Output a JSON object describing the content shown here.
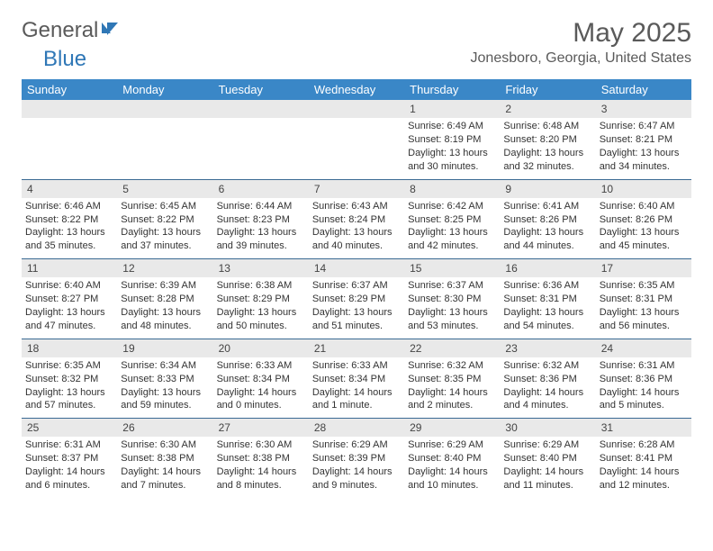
{
  "logo": {
    "part1": "General",
    "part2": "Blue"
  },
  "title": {
    "month": "May 2025",
    "location": "Jonesboro, Georgia, United States"
  },
  "weekday_labels": [
    "Sunday",
    "Monday",
    "Tuesday",
    "Wednesday",
    "Thursday",
    "Friday",
    "Saturday"
  ],
  "colors": {
    "header_bg": "#3a87c7",
    "header_text": "#ffffff",
    "daynum_bg": "#e9e9e9",
    "week_divider": "#3a6a93",
    "logo_gray": "#5a5a5a",
    "logo_blue": "#2f77b6",
    "body_text": "#333333"
  },
  "layout": {
    "columns": 7,
    "rows": 5,
    "first_weekday_index": 4
  },
  "days": [
    {
      "n": 1,
      "sunrise": "6:49 AM",
      "sunset": "8:19 PM",
      "daylight": "13 hours and 30 minutes."
    },
    {
      "n": 2,
      "sunrise": "6:48 AM",
      "sunset": "8:20 PM",
      "daylight": "13 hours and 32 minutes."
    },
    {
      "n": 3,
      "sunrise": "6:47 AM",
      "sunset": "8:21 PM",
      "daylight": "13 hours and 34 minutes."
    },
    {
      "n": 4,
      "sunrise": "6:46 AM",
      "sunset": "8:22 PM",
      "daylight": "13 hours and 35 minutes."
    },
    {
      "n": 5,
      "sunrise": "6:45 AM",
      "sunset": "8:22 PM",
      "daylight": "13 hours and 37 minutes."
    },
    {
      "n": 6,
      "sunrise": "6:44 AM",
      "sunset": "8:23 PM",
      "daylight": "13 hours and 39 minutes."
    },
    {
      "n": 7,
      "sunrise": "6:43 AM",
      "sunset": "8:24 PM",
      "daylight": "13 hours and 40 minutes."
    },
    {
      "n": 8,
      "sunrise": "6:42 AM",
      "sunset": "8:25 PM",
      "daylight": "13 hours and 42 minutes."
    },
    {
      "n": 9,
      "sunrise": "6:41 AM",
      "sunset": "8:26 PM",
      "daylight": "13 hours and 44 minutes."
    },
    {
      "n": 10,
      "sunrise": "6:40 AM",
      "sunset": "8:26 PM",
      "daylight": "13 hours and 45 minutes."
    },
    {
      "n": 11,
      "sunrise": "6:40 AM",
      "sunset": "8:27 PM",
      "daylight": "13 hours and 47 minutes."
    },
    {
      "n": 12,
      "sunrise": "6:39 AM",
      "sunset": "8:28 PM",
      "daylight": "13 hours and 48 minutes."
    },
    {
      "n": 13,
      "sunrise": "6:38 AM",
      "sunset": "8:29 PM",
      "daylight": "13 hours and 50 minutes."
    },
    {
      "n": 14,
      "sunrise": "6:37 AM",
      "sunset": "8:29 PM",
      "daylight": "13 hours and 51 minutes."
    },
    {
      "n": 15,
      "sunrise": "6:37 AM",
      "sunset": "8:30 PM",
      "daylight": "13 hours and 53 minutes."
    },
    {
      "n": 16,
      "sunrise": "6:36 AM",
      "sunset": "8:31 PM",
      "daylight": "13 hours and 54 minutes."
    },
    {
      "n": 17,
      "sunrise": "6:35 AM",
      "sunset": "8:31 PM",
      "daylight": "13 hours and 56 minutes."
    },
    {
      "n": 18,
      "sunrise": "6:35 AM",
      "sunset": "8:32 PM",
      "daylight": "13 hours and 57 minutes."
    },
    {
      "n": 19,
      "sunrise": "6:34 AM",
      "sunset": "8:33 PM",
      "daylight": "13 hours and 59 minutes."
    },
    {
      "n": 20,
      "sunrise": "6:33 AM",
      "sunset": "8:34 PM",
      "daylight": "14 hours and 0 minutes."
    },
    {
      "n": 21,
      "sunrise": "6:33 AM",
      "sunset": "8:34 PM",
      "daylight": "14 hours and 1 minute."
    },
    {
      "n": 22,
      "sunrise": "6:32 AM",
      "sunset": "8:35 PM",
      "daylight": "14 hours and 2 minutes."
    },
    {
      "n": 23,
      "sunrise": "6:32 AM",
      "sunset": "8:36 PM",
      "daylight": "14 hours and 4 minutes."
    },
    {
      "n": 24,
      "sunrise": "6:31 AM",
      "sunset": "8:36 PM",
      "daylight": "14 hours and 5 minutes."
    },
    {
      "n": 25,
      "sunrise": "6:31 AM",
      "sunset": "8:37 PM",
      "daylight": "14 hours and 6 minutes."
    },
    {
      "n": 26,
      "sunrise": "6:30 AM",
      "sunset": "8:38 PM",
      "daylight": "14 hours and 7 minutes."
    },
    {
      "n": 27,
      "sunrise": "6:30 AM",
      "sunset": "8:38 PM",
      "daylight": "14 hours and 8 minutes."
    },
    {
      "n": 28,
      "sunrise": "6:29 AM",
      "sunset": "8:39 PM",
      "daylight": "14 hours and 9 minutes."
    },
    {
      "n": 29,
      "sunrise": "6:29 AM",
      "sunset": "8:40 PM",
      "daylight": "14 hours and 10 minutes."
    },
    {
      "n": 30,
      "sunrise": "6:29 AM",
      "sunset": "8:40 PM",
      "daylight": "14 hours and 11 minutes."
    },
    {
      "n": 31,
      "sunrise": "6:28 AM",
      "sunset": "8:41 PM",
      "daylight": "14 hours and 12 minutes."
    }
  ],
  "labels": {
    "sunrise": "Sunrise:",
    "sunset": "Sunset:",
    "daylight": "Daylight:"
  }
}
